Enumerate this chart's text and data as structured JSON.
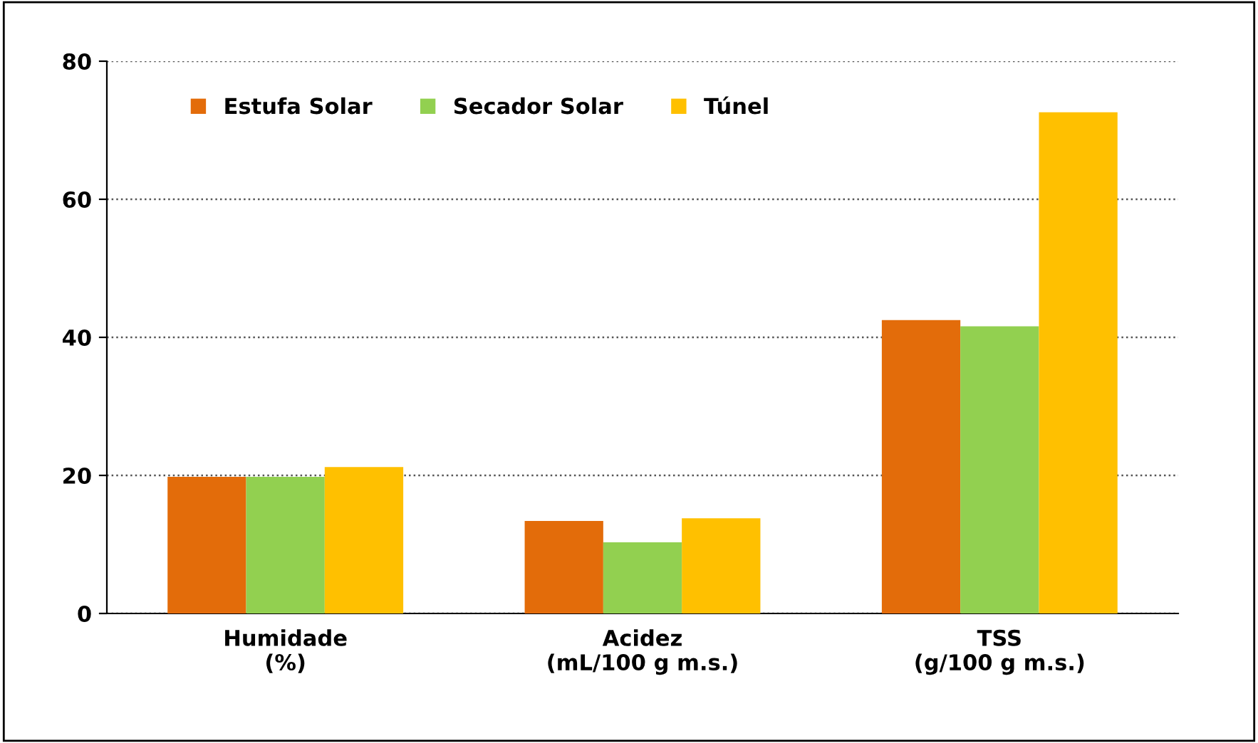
{
  "chart_data": {
    "type": "bar",
    "categories": [
      "Humidade\n(%)",
      "Acidez\n(mL/100 g m.s.)",
      "TSS\n(g/100 g m.s.)"
    ],
    "series": [
      {
        "name": "Estufa Solar",
        "color": "#e36c0a",
        "values": [
          19.8,
          13.4,
          42.5
        ]
      },
      {
        "name": "Secador Solar",
        "color": "#92d050",
        "values": [
          19.8,
          10.3,
          41.6
        ]
      },
      {
        "name": "Túnel",
        "color": "#ffc000",
        "values": [
          21.2,
          13.8,
          72.6
        ]
      }
    ],
    "ylim": [
      0,
      80
    ],
    "yticks": [
      0,
      20,
      40,
      60,
      80
    ],
    "grid": "y",
    "legend": "top left"
  }
}
